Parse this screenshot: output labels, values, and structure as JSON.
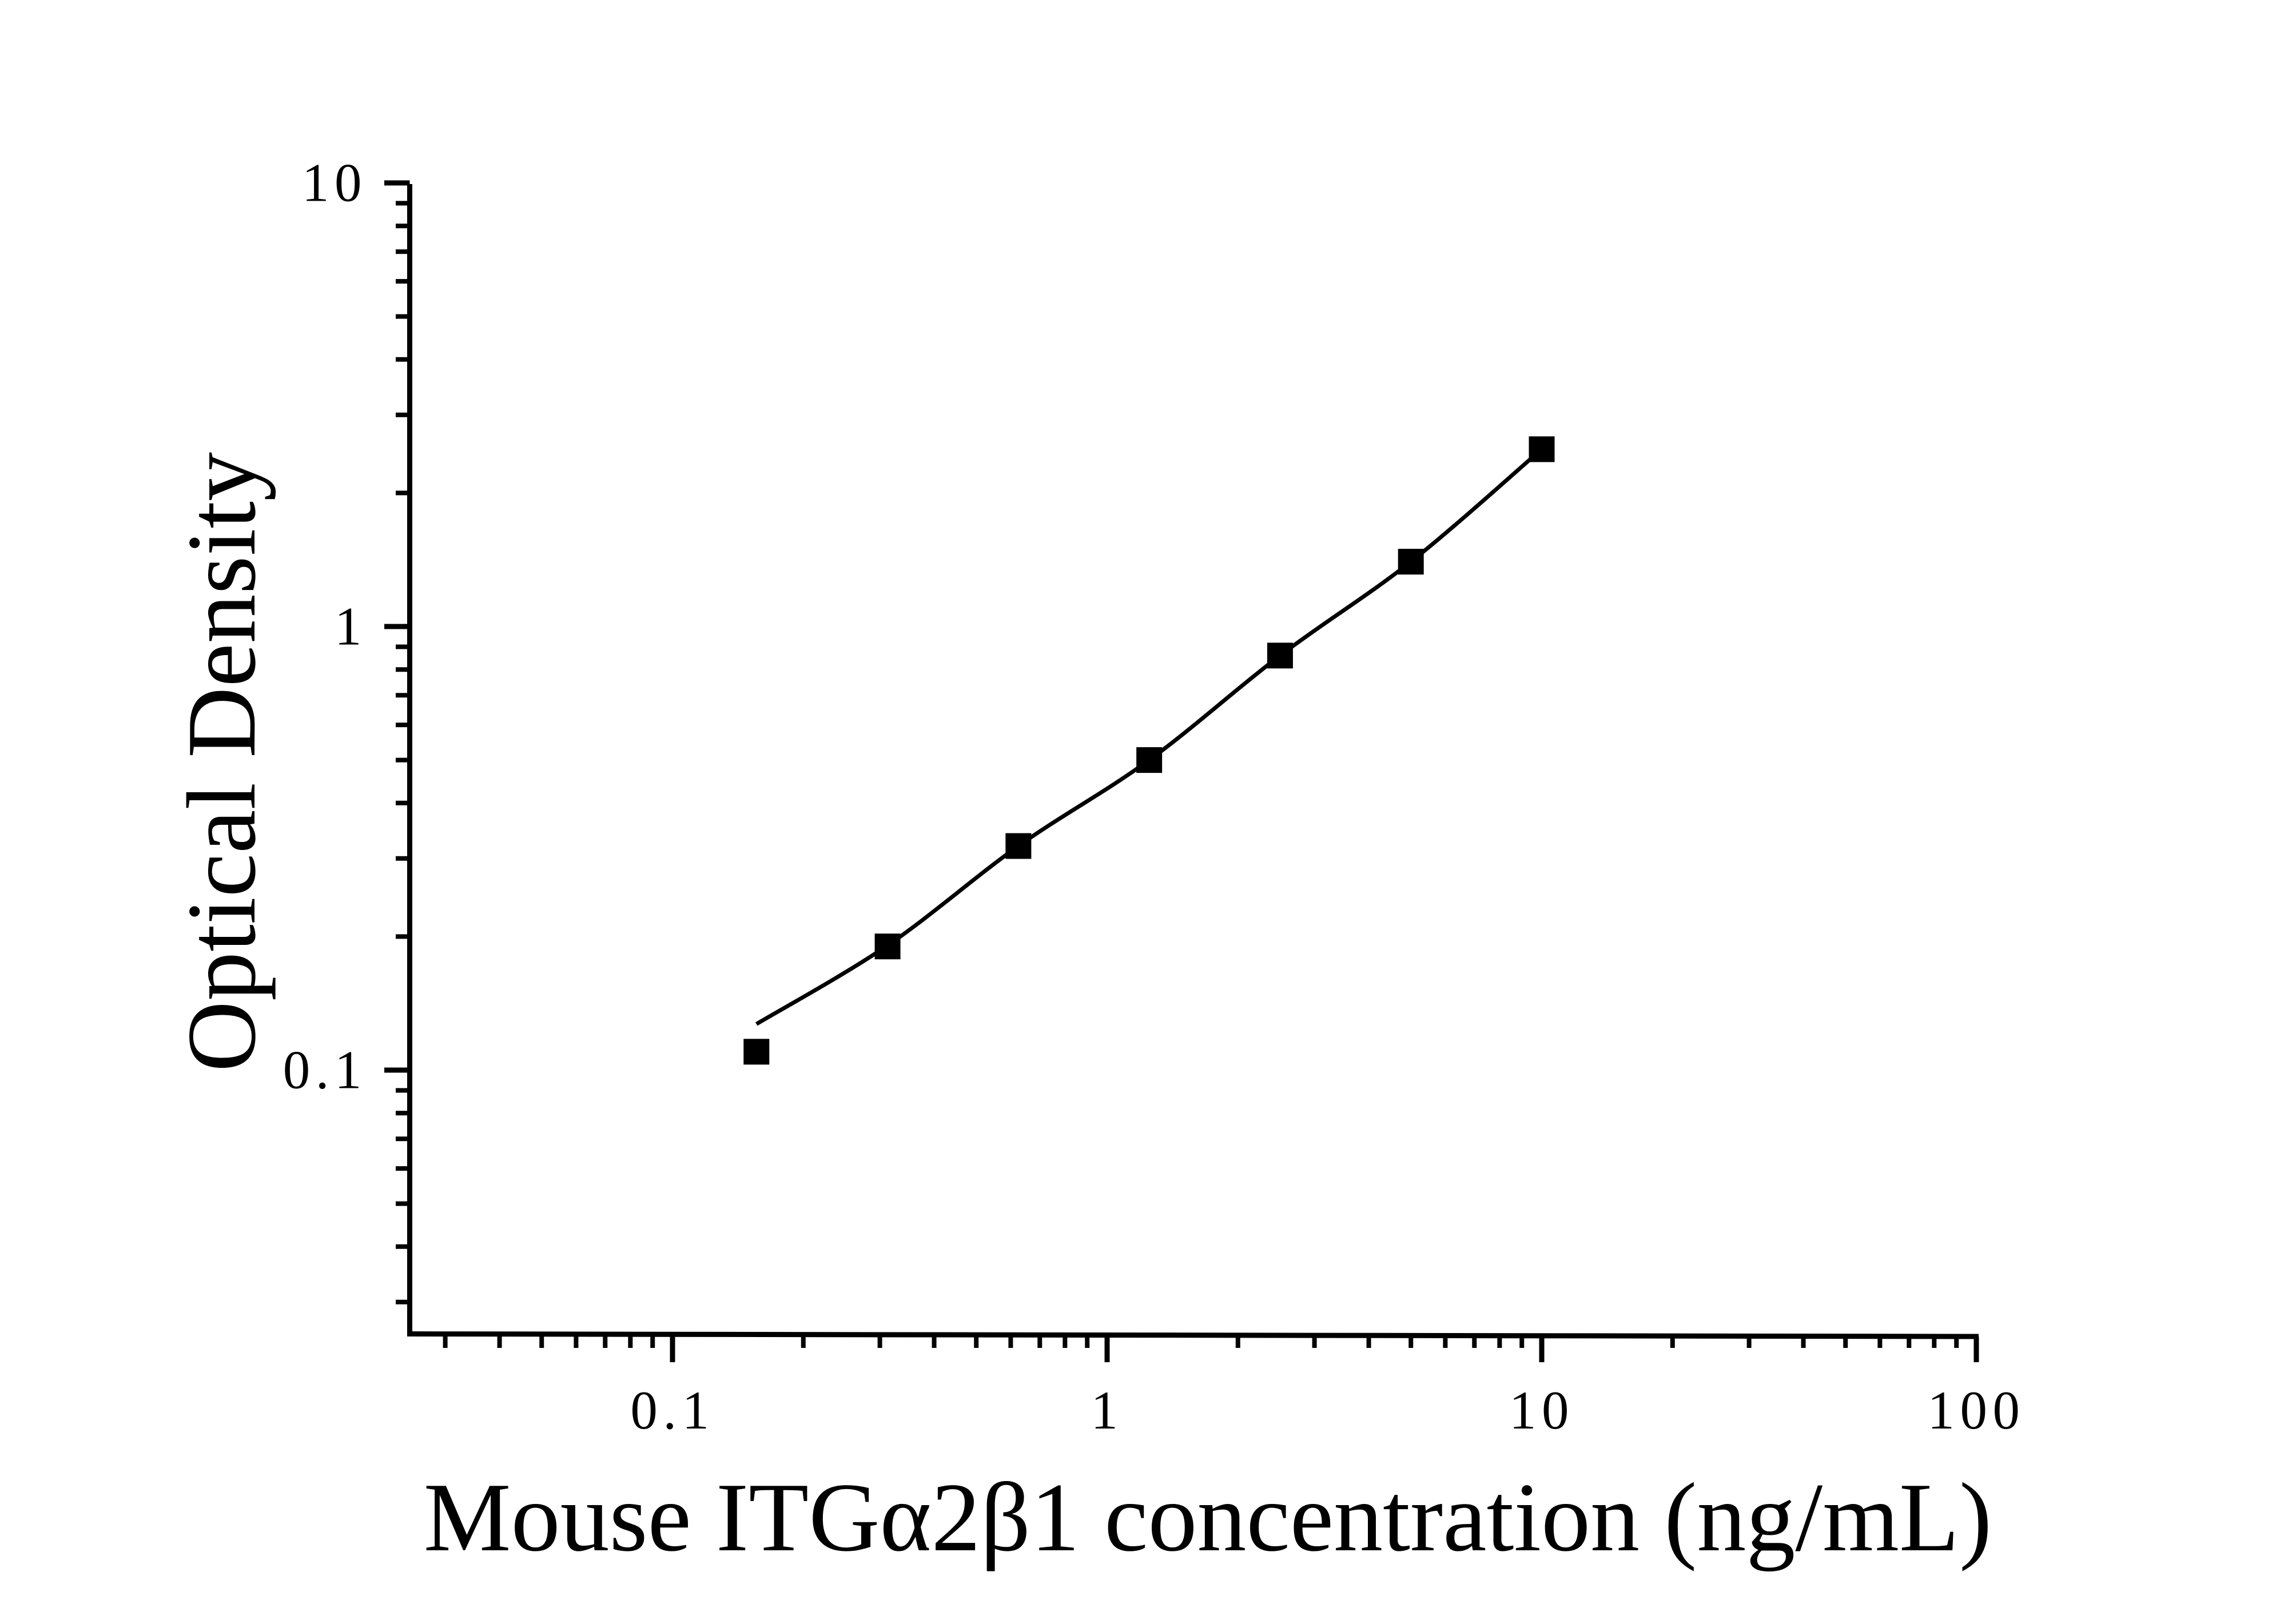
{
  "figure": {
    "background_color": "#ffffff",
    "ink_color": "#000000"
  },
  "chart_data": {
    "type": "scatter",
    "title": "",
    "xlabel": "Mouse ITGα2β1 concentration (ng/mL)",
    "ylabel": "Optical Density",
    "x_scale": "log",
    "y_scale": "log",
    "xlim": [
      0.025,
      100
    ],
    "ylim": [
      0.025,
      10
    ],
    "grid": false,
    "legend": "none",
    "x_ticks": [
      "0.1",
      "1",
      "10",
      "100"
    ],
    "y_ticks": [
      "10",
      "1",
      "0.1"
    ],
    "series": [
      {
        "name": "standard-curve-points",
        "marker": "filled-square",
        "points": [
          {
            "x": 0.156,
            "y": 0.11
          },
          {
            "x": 0.3125,
            "y": 0.19
          },
          {
            "x": 0.625,
            "y": 0.32
          },
          {
            "x": 1.25,
            "y": 0.5
          },
          {
            "x": 2.5,
            "y": 0.86
          },
          {
            "x": 5,
            "y": 1.4
          },
          {
            "x": 10,
            "y": 2.51
          }
        ]
      }
    ],
    "fit_curve": {
      "name": "fitted-line",
      "points": [
        {
          "x": 0.156,
          "y": 0.127
        },
        {
          "x": 0.3125,
          "y": 0.191
        },
        {
          "x": 0.625,
          "y": 0.32
        },
        {
          "x": 1.25,
          "y": 0.5
        },
        {
          "x": 2.5,
          "y": 0.86
        },
        {
          "x": 5,
          "y": 1.4
        },
        {
          "x": 10,
          "y": 2.51
        }
      ]
    }
  }
}
